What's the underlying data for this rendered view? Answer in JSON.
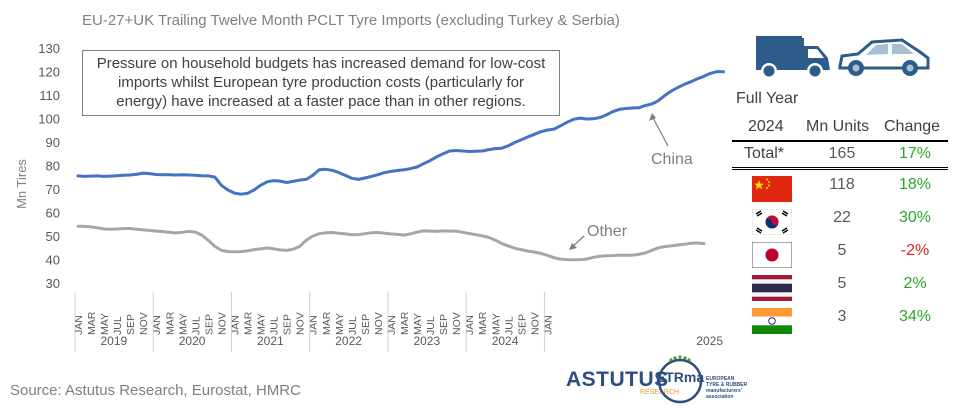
{
  "chart_data": {
    "type": "line",
    "title": "EU-27+UK Trailing Twelve Month PCLT Tyre Imports (excluding Turkey & Serbia)",
    "ylabel": "Mn Tires",
    "ylim": [
      30,
      130
    ],
    "yticks": [
      "30",
      "40",
      "50",
      "60",
      "70",
      "80",
      "90",
      "100",
      "110",
      "120",
      "130"
    ],
    "month_labels": [
      "JAN",
      "MAR",
      "MAY",
      "JUL",
      "SEP",
      "NOV"
    ],
    "years": [
      "2019",
      "2020",
      "2021",
      "2022",
      "2023",
      "2024",
      "2025"
    ],
    "x_start": "2019-01",
    "series": [
      {
        "name": "China",
        "color": "#4472c4",
        "values": [
          76,
          75.8,
          75.9,
          76,
          75.8,
          75.9,
          76.1,
          76.3,
          76.4,
          76.7,
          77.2,
          77,
          76.6,
          76.5,
          76.5,
          76.4,
          76.5,
          76.4,
          76.3,
          76.1,
          76,
          75.5,
          72,
          70,
          68.7,
          68.2,
          68.6,
          70,
          72,
          73.5,
          74,
          73.8,
          73.2,
          73.7,
          74.2,
          74.5,
          76.2,
          78.6,
          78.8,
          78.4,
          77.4,
          76.2,
          75,
          74.5,
          75.1,
          75.8,
          76.5,
          77.4,
          77.9,
          78.3,
          78.6,
          79.1,
          79.8,
          81.2,
          82.5,
          84.1,
          85.4,
          86.6,
          86.8,
          86.6,
          86.4,
          86.5,
          86.6,
          87.2,
          87.6,
          87.8,
          88.8,
          90.2,
          91.4,
          92.6,
          93.7,
          94.8,
          95.5,
          95.9,
          97.3,
          98.8,
          100.1,
          100.6,
          100.2,
          100.3,
          100.8,
          101.9,
          103.3,
          104.3,
          104.7,
          104.9,
          105,
          105.9,
          106.6,
          108,
          110.2,
          112.1,
          113.6,
          115,
          116.1,
          117.3,
          118.4,
          119.6,
          120.4,
          120.3
        ]
      },
      {
        "name": "Other",
        "color": "#a6a6a6",
        "values": [
          54.6,
          54.5,
          54.3,
          53.9,
          53.4,
          53.3,
          53.4,
          53.6,
          53.6,
          53.3,
          53,
          52.8,
          52.5,
          52.3,
          52,
          51.7,
          52,
          52.4,
          52.1,
          50.8,
          48.5,
          46,
          44.3,
          43.8,
          43.7,
          43.8,
          44.1,
          44.6,
          45,
          45.3,
          45,
          44.5,
          44.3,
          44.8,
          46,
          48.6,
          50.4,
          51.4,
          51.8,
          51.9,
          51.6,
          51.3,
          51,
          51,
          51.4,
          51.8,
          51.9,
          51.6,
          51.3,
          51.1,
          50.8,
          51.3,
          52.1,
          52.6,
          52.5,
          52.4,
          52.6,
          52.5,
          52.5,
          52,
          51.5,
          51,
          50.5,
          49.8,
          48.7,
          47.2,
          46.2,
          45.2,
          44.6,
          44,
          43.6,
          43,
          42.2,
          41.2,
          40.6,
          40.4,
          40.3,
          40.4,
          40.6,
          41.3,
          41.8,
          42,
          42.1,
          42.3,
          42.2,
          42.3,
          42.6,
          43.2,
          44.3,
          45.4,
          45.9,
          46.2,
          46.6,
          46.9,
          47.3,
          47.5,
          47.2
        ]
      }
    ],
    "annotations": [
      "China",
      "Other"
    ],
    "grid": false
  },
  "callout_text": "Pressure on household budgets has increased demand for low-cost imports whilst European tyre production costs (particularly for energy) have increased at a faster pace than in other regions.",
  "source": "Source: Astutus Research, Eurostat, HMRC",
  "vehicles": [
    "van-icon",
    "car-icon"
  ],
  "vehicle_color": "#2e5c8a",
  "table": {
    "heading": "Full Year",
    "col_year": "2024",
    "col_units": "Mn Units",
    "col_change": "Change",
    "total": {
      "label": "Total*",
      "units": "165",
      "change": "17%"
    },
    "rows": [
      {
        "country": "China",
        "flag": "china-flag-icon",
        "units": "118",
        "change": "18%",
        "positive": true
      },
      {
        "country": "South Korea",
        "flag": "south-korea-flag-icon",
        "units": "22",
        "change": "30%",
        "positive": true
      },
      {
        "country": "Japan",
        "flag": "japan-flag-icon",
        "units": "5",
        "change": "-2%",
        "positive": false
      },
      {
        "country": "Thailand",
        "flag": "thailand-flag-icon",
        "units": "5",
        "change": "2%",
        "positive": true
      },
      {
        "country": "India",
        "flag": "india-flag-icon",
        "units": "3",
        "change": "34%",
        "positive": true
      }
    ]
  },
  "logos": {
    "astutus": "ASTUTUS",
    "astutus_sub": "RESEARCH",
    "etrma": "ETRma",
    "etrma_text": [
      "EUROPEAN",
      "TYRE & RUBBER",
      "manufacturers'",
      "association"
    ]
  }
}
